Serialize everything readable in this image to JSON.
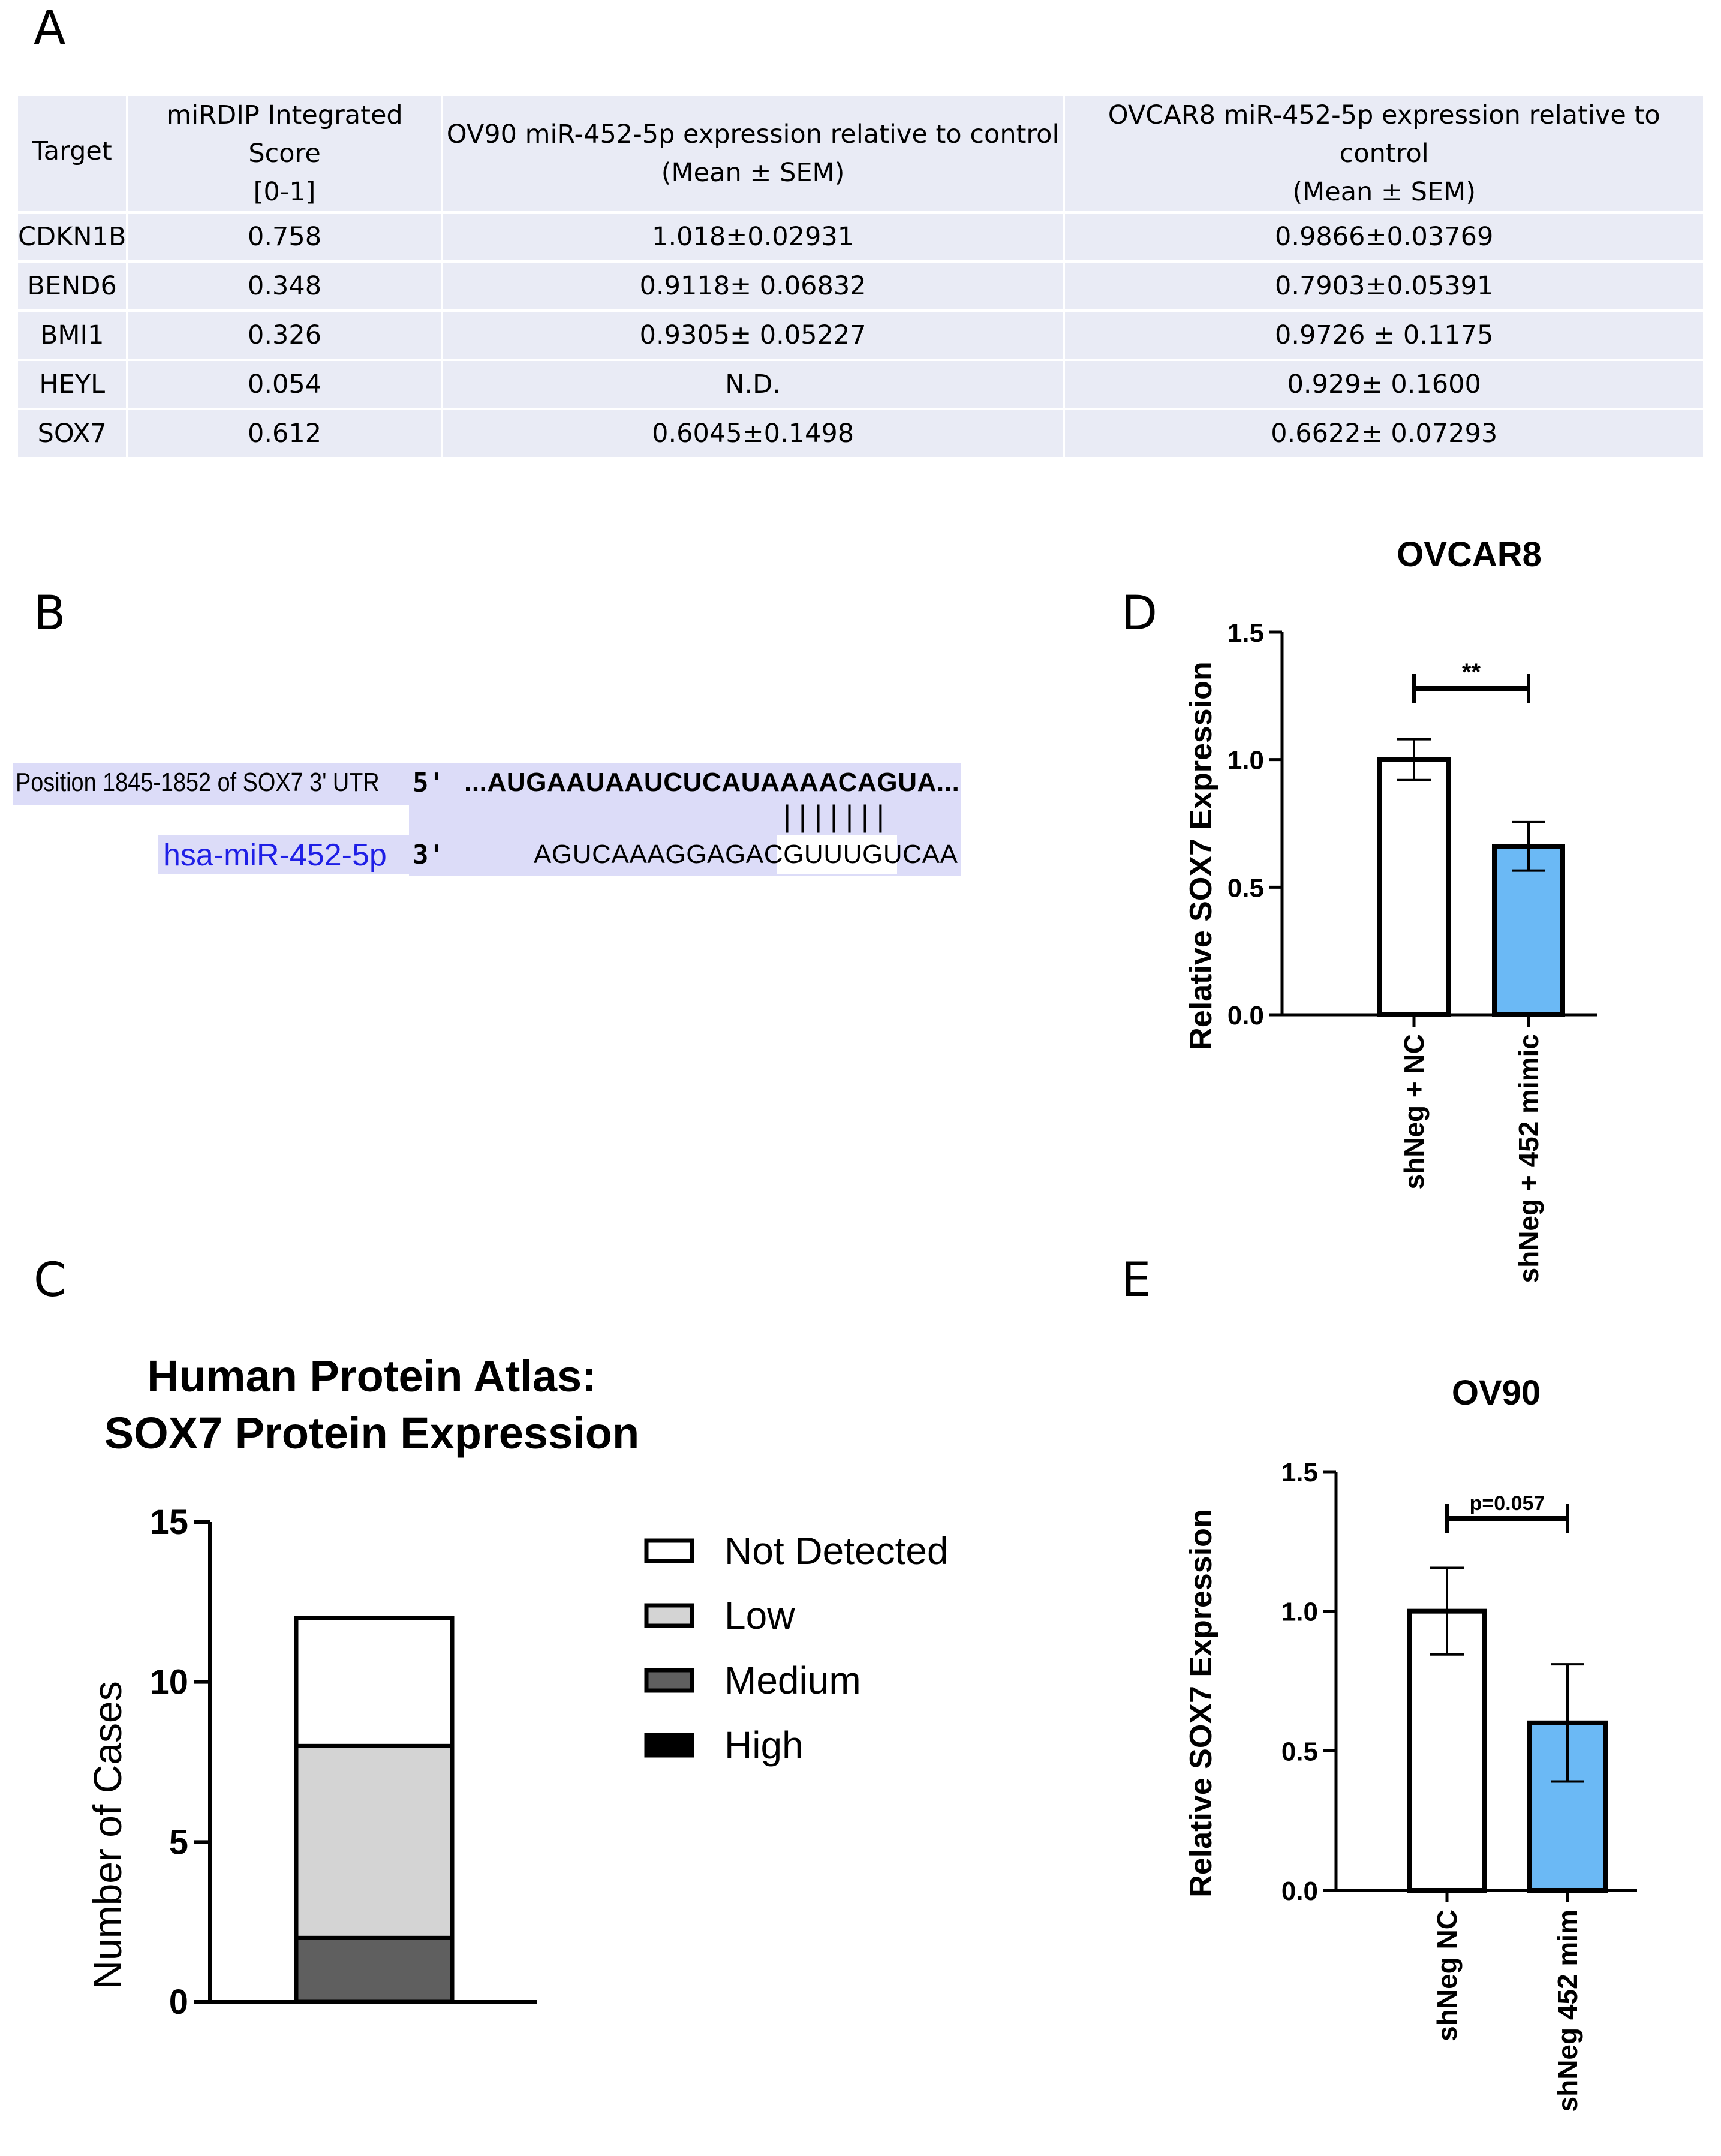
{
  "panels": {
    "a": "A",
    "b": "B",
    "c": "C",
    "d": "D",
    "e": "E"
  },
  "table": {
    "headers": {
      "target": "Target",
      "score_line1": "miRDIP Integrated Score",
      "score_line2": "[0-1]",
      "ov90_line1": "OV90 miR-452-5p expression relative to control",
      "ov90_line2": "(Mean ± SEM)",
      "ovcar8_line1": "OVCAR8 miR-452-5p expression relative to control",
      "ovcar8_line2": "(Mean ± SEM)"
    },
    "rows": [
      {
        "target": "CDKN1B",
        "score": "0.758",
        "ov90": "1.018±0.02931",
        "ovcar8": "0.9866±0.03769"
      },
      {
        "target": "BEND6",
        "score": "0.348",
        "ov90": "0.9118± 0.06832",
        "ovcar8": "0.7903±0.05391"
      },
      {
        "target": "BMI1",
        "score": "0.326",
        "ov90": "0.9305± 0.05227",
        "ovcar8": "0.9726 ± 0.1175"
      },
      {
        "target": "HEYL",
        "score": "0.054",
        "ov90": "N.D.",
        "ovcar8": "0.929± 0.1600"
      },
      {
        "target": "SOX7",
        "score": "0.612",
        "ov90": "0.6045±0.1498",
        "ovcar8": "0.6622± 0.07293"
      }
    ]
  },
  "alignment": {
    "utr_label": "Position 1845-1852 of SOX7 3' UTR",
    "utr_end": "5'",
    "utr_seq": "...AUGAAUAAUCUCAUAAAACAGUA...",
    "pairing": "|||||||",
    "mirna_label": "hsa-miR-452-5p",
    "mirna_end": "3'",
    "mirna_seq": "AGUCAAAGGAGACGUUUGUCAA",
    "colors": {
      "box": "#dcdcf8",
      "mirna_label": "#1f1fe6"
    }
  },
  "chart_data": [
    {
      "id": "C",
      "type": "bar",
      "subtype": "stacked",
      "title": [
        "Human Protein Atlas:",
        "SOX7 Protein Expression"
      ],
      "xlabel": "",
      "ylabel": "Number of Cases",
      "ylim": [
        0,
        15
      ],
      "yticks": [
        0,
        5,
        10,
        15
      ],
      "categories": [
        ""
      ],
      "series": [
        {
          "name": "Medium",
          "values": [
            2
          ],
          "color": "#5f5f5f"
        },
        {
          "name": "Low",
          "values": [
            6
          ],
          "color": "#d4d4d4"
        },
        {
          "name": "Not Detected",
          "values": [
            4
          ],
          "color": "#ffffff"
        },
        {
          "name": "High",
          "values": [
            0
          ],
          "color": "#000000"
        }
      ],
      "legend": [
        "Not Detected",
        "Low",
        "Medium",
        "High"
      ],
      "legend_position": "right"
    },
    {
      "id": "D",
      "type": "bar",
      "title": "OVCAR8",
      "ylabel": "Relative SOX7 Expression",
      "ylim": [
        0,
        1.5
      ],
      "yticks": [
        "0.0",
        "0.5",
        "1.0",
        "1.5"
      ],
      "categories": [
        "shNeg + NC",
        "shNeg + 452 mimic"
      ],
      "values": [
        1.0,
        0.66
      ],
      "errors": [
        0.08,
        0.095
      ],
      "colors": [
        "#ffffff",
        "#6bb9f5"
      ],
      "significance": "**"
    },
    {
      "id": "E",
      "type": "bar",
      "title": "OV90",
      "ylabel": "Relative SOX7 Expression",
      "ylim": [
        0,
        1.5
      ],
      "yticks": [
        "0.0",
        "0.5",
        "1.0",
        "1.5"
      ],
      "categories": [
        "shNeg NC",
        "shNeg 452 mim"
      ],
      "values": [
        1.0,
        0.6
      ],
      "errors": [
        0.155,
        0.21
      ],
      "colors": [
        "#ffffff",
        "#6bb9f5"
      ],
      "significance": "p=0.057"
    }
  ]
}
